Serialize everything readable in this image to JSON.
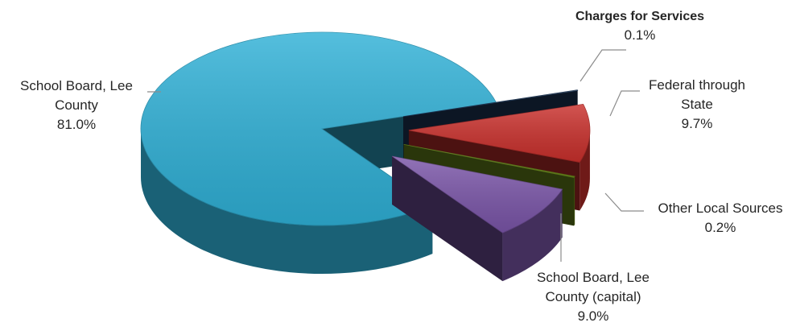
{
  "chart_data": {
    "type": "pie",
    "style": "3d-exploded",
    "slices": [
      {
        "label_lines": [
          "Charges for Services"
        ],
        "pct_text": "0.1%",
        "value": 0.1,
        "color": "#1f3b5e"
      },
      {
        "label_lines": [
          "Federal through",
          "State"
        ],
        "pct_text": "9.7%",
        "value": 9.7,
        "color": "#c9302c"
      },
      {
        "label_lines": [
          "Other Local Sources"
        ],
        "pct_text": "0.2%",
        "value": 0.2,
        "color": "#6e8f1c"
      },
      {
        "label_lines": [
          "School Board, Lee",
          "County (capital)"
        ],
        "pct_text": "9.0%",
        "value": 9.0,
        "color": "#7a55a8"
      },
      {
        "label_lines": [
          "School Board, Lee",
          "County"
        ],
        "pct_text": "81.0%",
        "value": 81.0,
        "color": "#2fb0d6"
      }
    ]
  }
}
